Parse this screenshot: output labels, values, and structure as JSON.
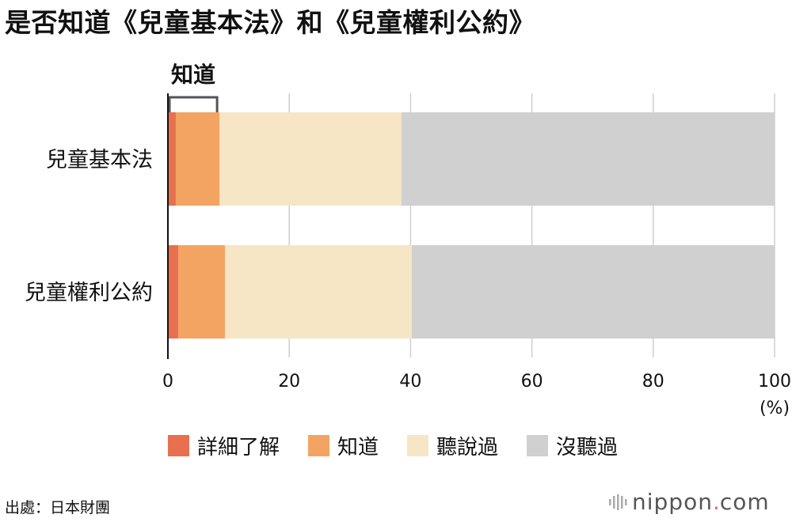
{
  "chart_data": {
    "type": "bar",
    "stacked": true,
    "orientation": "horizontal",
    "title": "是否知道《兒童基本法》和《兒童權利公約》",
    "categories": [
      "兒童基本法",
      "兒童權利公約"
    ],
    "series": [
      {
        "name": "詳細了解",
        "color": "#e8704f",
        "values": [
          1.3,
          1.7
        ]
      },
      {
        "name": "知道",
        "color": "#f4a462",
        "values": [
          7.2,
          7.7
        ]
      },
      {
        "name": "聽說過",
        "color": "#f6e6c5",
        "values": [
          30.0,
          30.8
        ]
      },
      {
        "name": "沒聽過",
        "color": "#d0d0d0",
        "values": [
          61.5,
          59.8
        ]
      }
    ],
    "xlim": [
      0,
      100
    ],
    "x_ticks": [
      "0",
      "20",
      "40",
      "60",
      "80",
      "100"
    ],
    "x_unit": "(%)",
    "grid": true,
    "legend_position": "bottom",
    "annotation": {
      "text": "知道",
      "series_span": [
        "詳細了解",
        "知道"
      ]
    }
  },
  "footer": {
    "source": "出處：日本財團",
    "brand_name": "nippon",
    "brand_dot": ".",
    "brand_tld": "com"
  }
}
